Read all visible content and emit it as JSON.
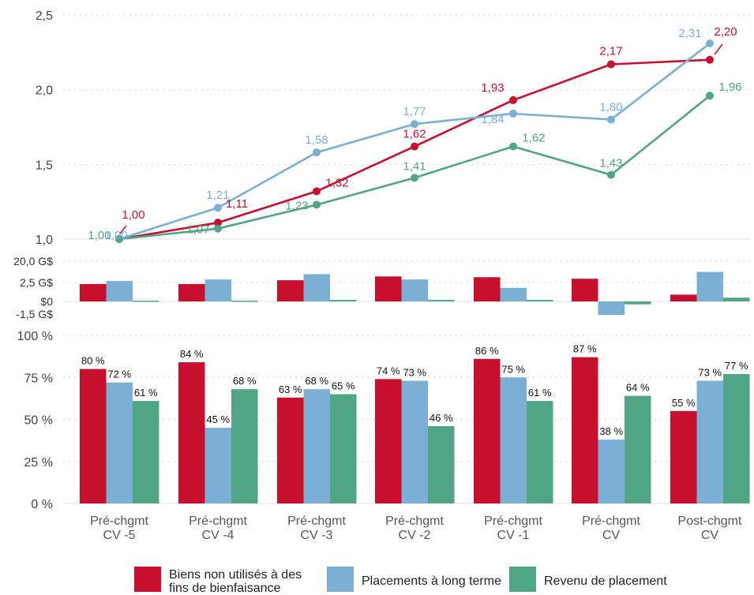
{
  "chart_data": [
    {
      "type": "line",
      "categories": [
        "Pré-chgmt\nCV -5",
        "Pré-chgmt\nCV -4",
        "Pré-chgmt\nCV -3",
        "Pré-chgmt\nCV -2",
        "Pré-chgmt\nCV -1",
        "Pré-chgmt\nCV",
        "Post-chgmt\nCV"
      ],
      "ylim": [
        1.0,
        2.5
      ],
      "yticks": [
        "1,0",
        "1,5",
        "2,0",
        "2,5"
      ],
      "grid": true,
      "series": [
        {
          "name": "Biens non utilisés à des fins de bienfaisance",
          "color": "#c8102e",
          "values": [
            1.0,
            1.11,
            1.32,
            1.62,
            1.93,
            2.17,
            2.2
          ],
          "labels": [
            "1,00",
            "1,11",
            "1,32",
            "1,62",
            "1,93",
            "2,17",
            "2,20"
          ]
        },
        {
          "name": "Placements à long terme",
          "color": "#7bafd4",
          "values": [
            1.0,
            1.21,
            1.58,
            1.77,
            1.84,
            1.8,
            2.31
          ],
          "labels": [
            "1,00",
            "1,21",
            "1,58",
            "1,77",
            "1,84",
            "1,80",
            "2,31"
          ]
        },
        {
          "name": "Revenu de placement",
          "color": "#4fa584",
          "values": [
            1.0,
            1.07,
            1.23,
            1.41,
            1.62,
            1.43,
            1.96
          ],
          "labels": [
            "1,00",
            "1,07",
            "1,23",
            "1,41",
            "1,62",
            "1,43",
            "1,96"
          ]
        }
      ]
    },
    {
      "type": "bar",
      "yticks": [
        "20,0 G$",
        "2,5 G$",
        "$0",
        "-1,5 G$"
      ],
      "grid": true,
      "series": [
        {
          "name": "Biens non utilisés à des fins de bienfaisance",
          "color": "#c8102e",
          "values": [
            2.3,
            2.3,
            2.8,
            3.3,
            3.2,
            3.0,
            0.9
          ]
        },
        {
          "name": "Placements à long terme",
          "color": "#7bafd4",
          "values": [
            2.7,
            2.9,
            3.6,
            2.9,
            1.8,
            -1.4,
            3.9
          ]
        },
        {
          "name": "Revenu de placement",
          "color": "#4fa584",
          "values": [
            0.1,
            0.1,
            0.2,
            0.2,
            0.2,
            -0.3,
            0.5
          ]
        }
      ]
    },
    {
      "type": "bar",
      "ylim": [
        0,
        100
      ],
      "yticks": [
        "0 %",
        "25 %",
        "50 %",
        "75 %",
        "100 %"
      ],
      "grid": true,
      "series": [
        {
          "name": "Biens non utilisés à des fins de bienfaisance",
          "color": "#c8102e",
          "values": [
            80,
            84,
            63,
            74,
            86,
            87,
            55
          ],
          "labels": [
            "80 %",
            "84 %",
            "63 %",
            "74 %",
            "86 %",
            "87 %",
            "55 %"
          ]
        },
        {
          "name": "Placements à long terme",
          "color": "#7bafd4",
          "values": [
            72,
            45,
            68,
            73,
            75,
            38,
            73
          ],
          "labels": [
            "72 %",
            "45 %",
            "68 %",
            "73 %",
            "75 %",
            "38 %",
            "73 %"
          ]
        },
        {
          "name": "Revenu de placement",
          "color": "#4fa584",
          "values": [
            61,
            68,
            65,
            46,
            61,
            64,
            77
          ],
          "labels": [
            "61 %",
            "68 %",
            "65 %",
            "46 %",
            "61 %",
            "64 %",
            "77 %"
          ]
        }
      ]
    }
  ],
  "legend": {
    "items": [
      {
        "label": "Biens non utilisés à des fins de bienfaisance",
        "color": "#c8102e"
      },
      {
        "label": "Placements à long terme",
        "color": "#7bafd4"
      },
      {
        "label": "Revenu de placement",
        "color": "#4fa584"
      }
    ]
  }
}
